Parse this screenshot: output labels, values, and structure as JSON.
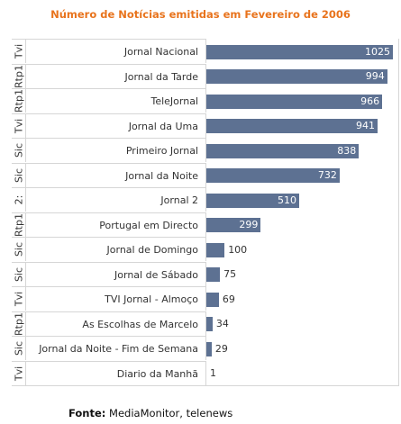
{
  "chart_data": {
    "type": "bar",
    "orientation": "horizontal",
    "title": "Número de Notícias emitidas em Fevereiro de 2006",
    "channels": [
      "Tvi",
      "Rtp1",
      "Rtp1",
      "Tvi",
      "Sic",
      "Sic",
      "2:",
      "Rtp1",
      "Sic",
      "Sic",
      "Tvi",
      "Rtp1",
      "Sic",
      "Tvi"
    ],
    "categories": [
      "Jornal Nacional",
      "Jornal da Tarde",
      "TeleJornal",
      "Jornal da Uma",
      "Primeiro Jornal",
      "Jornal da Noite",
      "Jornal 2",
      "Portugal em Directo",
      "Jornal de Domingo",
      "Jornal de Sábado",
      "TVI Jornal - Almoço",
      "As Escolhas de Marcelo",
      "Jornal da Noite - Fim de Semana",
      "Diario da Manhã"
    ],
    "values": [
      1025,
      994,
      966,
      941,
      838,
      732,
      510,
      299,
      100,
      75,
      69,
      34,
      29,
      1
    ],
    "bar_color": "#5d7192",
    "grid": false,
    "legend": "none"
  },
  "footer": {
    "label": "Fonte:",
    "text": " MediaMonitor, telenews"
  }
}
